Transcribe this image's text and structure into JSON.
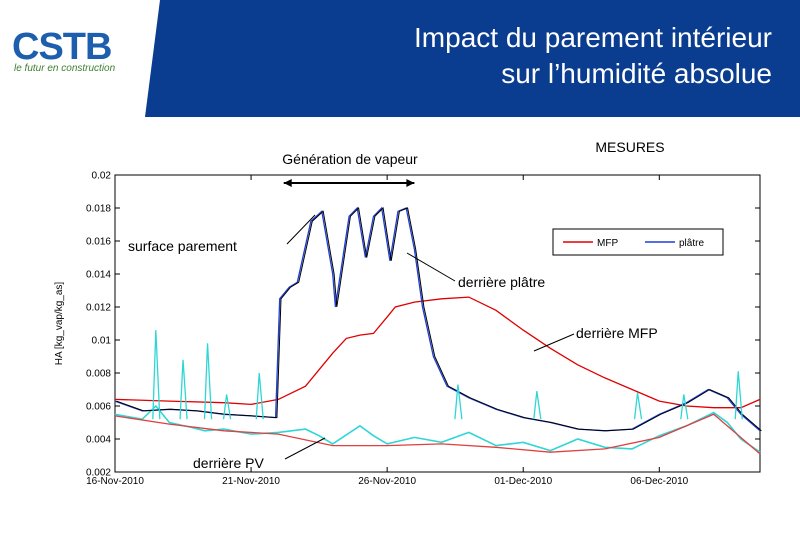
{
  "header": {
    "logo_text": "CSTB",
    "logo_tagline": "le futur en construction",
    "title_line1": "Impact du parement intérieur",
    "title_line2": "sur l’humidité absolue",
    "brand_color": "#0a3d8f",
    "logo_color": "#1d5fae"
  },
  "chart_data": {
    "type": "line",
    "subtitle": "MESURES",
    "ylabel": "HA [kg_vap/kg_as]",
    "ylim": [
      0.002,
      0.02
    ],
    "yticks": [
      "0.002",
      "0.004",
      "0.006",
      "0.008",
      "0.01",
      "0.012",
      "0.014",
      "0.016",
      "0.018",
      "0.02"
    ],
    "xlim_days": [
      0,
      23.7
    ],
    "xticks": [
      {
        "day": 0,
        "label": "16-Nov-2010"
      },
      {
        "day": 5,
        "label": "21-Nov-2010"
      },
      {
        "day": 10,
        "label": "26-Nov-2010"
      },
      {
        "day": 15,
        "label": "01-Dec-2010"
      },
      {
        "day": 20,
        "label": "06-Dec-2010"
      }
    ],
    "grid": false,
    "legend": {
      "position": "upper-right",
      "entries": [
        {
          "label": "MFP",
          "color": "#e00000"
        },
        {
          "label": "plâtre",
          "color": "#1f3fd8"
        }
      ]
    },
    "series": [
      {
        "name": "MFP",
        "color": "#e00000",
        "points": [
          [
            0,
            0.0064
          ],
          [
            2,
            0.0063
          ],
          [
            4,
            0.0062
          ],
          [
            5,
            0.0061
          ],
          [
            6,
            0.0064
          ],
          [
            7,
            0.0072
          ],
          [
            7.5,
            0.0082
          ],
          [
            8,
            0.0092
          ],
          [
            8.5,
            0.0101
          ],
          [
            9,
            0.0103
          ],
          [
            9.5,
            0.0104
          ],
          [
            10,
            0.0114
          ],
          [
            10.3,
            0.012
          ],
          [
            11,
            0.0123
          ],
          [
            12,
            0.0125
          ],
          [
            13,
            0.0126
          ],
          [
            14,
            0.0118
          ],
          [
            15,
            0.0106
          ],
          [
            16,
            0.0095
          ],
          [
            17,
            0.0085
          ],
          [
            18,
            0.0077
          ],
          [
            19,
            0.007
          ],
          [
            20,
            0.0063
          ],
          [
            21,
            0.006
          ],
          [
            22,
            0.0059
          ],
          [
            23,
            0.0059
          ],
          [
            23.7,
            0.0064
          ]
        ]
      },
      {
        "name": "plâtre",
        "color": "#1f3fd8",
        "points": [
          [
            0,
            0.0063
          ],
          [
            1,
            0.0057
          ],
          [
            2,
            0.0058
          ],
          [
            3,
            0.0057
          ],
          [
            4,
            0.0055
          ],
          [
            5,
            0.0054
          ],
          [
            5.9,
            0.0053
          ],
          [
            6.05,
            0.0125
          ],
          [
            6.4,
            0.0132
          ],
          [
            6.7,
            0.0135
          ],
          [
            7.2,
            0.0172
          ],
          [
            7.6,
            0.0178
          ],
          [
            8,
            0.014
          ],
          [
            8.1,
            0.012
          ],
          [
            8.6,
            0.0175
          ],
          [
            8.9,
            0.018
          ],
          [
            9.2,
            0.015
          ],
          [
            9.5,
            0.0175
          ],
          [
            9.8,
            0.018
          ],
          [
            10.1,
            0.0148
          ],
          [
            10.4,
            0.0178
          ],
          [
            10.7,
            0.018
          ],
          [
            11,
            0.0155
          ],
          [
            11.3,
            0.012
          ],
          [
            11.7,
            0.009
          ],
          [
            12.2,
            0.0072
          ],
          [
            13,
            0.0065
          ],
          [
            14,
            0.0058
          ],
          [
            15,
            0.0053
          ],
          [
            16,
            0.005
          ],
          [
            17,
            0.0046
          ],
          [
            18,
            0.0045
          ],
          [
            19,
            0.0046
          ],
          [
            20,
            0.0055
          ],
          [
            21,
            0.0062
          ],
          [
            21.8,
            0.007
          ],
          [
            22.5,
            0.0065
          ],
          [
            23,
            0.0055
          ],
          [
            23.7,
            0.0045
          ]
        ]
      },
      {
        "name": "derrière PV",
        "color": "#2fd6d6",
        "points": [
          [
            0,
            0.0055
          ],
          [
            1,
            0.0052
          ],
          [
            1.5,
            0.006
          ],
          [
            2,
            0.005
          ],
          [
            2.8,
            0.0047
          ],
          [
            3.3,
            0.0045
          ],
          [
            4,
            0.0046
          ],
          [
            5,
            0.0043
          ],
          [
            6,
            0.0044
          ],
          [
            7,
            0.0046
          ],
          [
            7.5,
            0.0042
          ],
          [
            8,
            0.0037
          ],
          [
            9,
            0.0048
          ],
          [
            9.5,
            0.0042
          ],
          [
            10,
            0.0037
          ],
          [
            11,
            0.0041
          ],
          [
            12,
            0.0038
          ],
          [
            13,
            0.0044
          ],
          [
            14,
            0.0036
          ],
          [
            15,
            0.0038
          ],
          [
            16,
            0.0033
          ],
          [
            17,
            0.004
          ],
          [
            18,
            0.0035
          ],
          [
            19,
            0.0034
          ],
          [
            20,
            0.0042
          ],
          [
            21,
            0.0048
          ],
          [
            22,
            0.0056
          ],
          [
            22.5,
            0.005
          ],
          [
            23,
            0.004
          ],
          [
            23.7,
            0.0032
          ]
        ]
      },
      {
        "name": "derrière PV (rouge)",
        "color": "#e04040",
        "points": [
          [
            0,
            0.0054
          ],
          [
            2,
            0.0049
          ],
          [
            4,
            0.0045
          ],
          [
            6,
            0.0043
          ],
          [
            8,
            0.0036
          ],
          [
            10,
            0.0036
          ],
          [
            12,
            0.0037
          ],
          [
            14,
            0.0035
          ],
          [
            16,
            0.0032
          ],
          [
            18,
            0.0034
          ],
          [
            20,
            0.0041
          ],
          [
            22,
            0.0055
          ],
          [
            23.7,
            0.0031
          ]
        ]
      }
    ],
    "spikes": [
      {
        "day": 1.5,
        "value": 0.0106
      },
      {
        "day": 2.5,
        "value": 0.0088
      },
      {
        "day": 3.4,
        "value": 0.0098
      },
      {
        "day": 4.1,
        "value": 0.0067
      },
      {
        "day": 5.3,
        "value": 0.008
      },
      {
        "day": 12.6,
        "value": 0.0073
      },
      {
        "day": 15.5,
        "value": 0.0069
      },
      {
        "day": 19.2,
        "value": 0.0068
      },
      {
        "day": 20.9,
        "value": 0.0067
      },
      {
        "day": 22.9,
        "value": 0.0081
      }
    ],
    "vapor_period_days": [
      6.2,
      11.0
    ],
    "annotations": [
      {
        "text": "Génération de vapeur",
        "target": "top-arrow"
      },
      {
        "text": "surface parement",
        "target": "peak"
      },
      {
        "text": "derrière plâtre",
        "target": "plateau"
      },
      {
        "text": "derrière MFP",
        "target": "decline"
      },
      {
        "text": "derrière PV",
        "target": "baseline"
      }
    ]
  }
}
